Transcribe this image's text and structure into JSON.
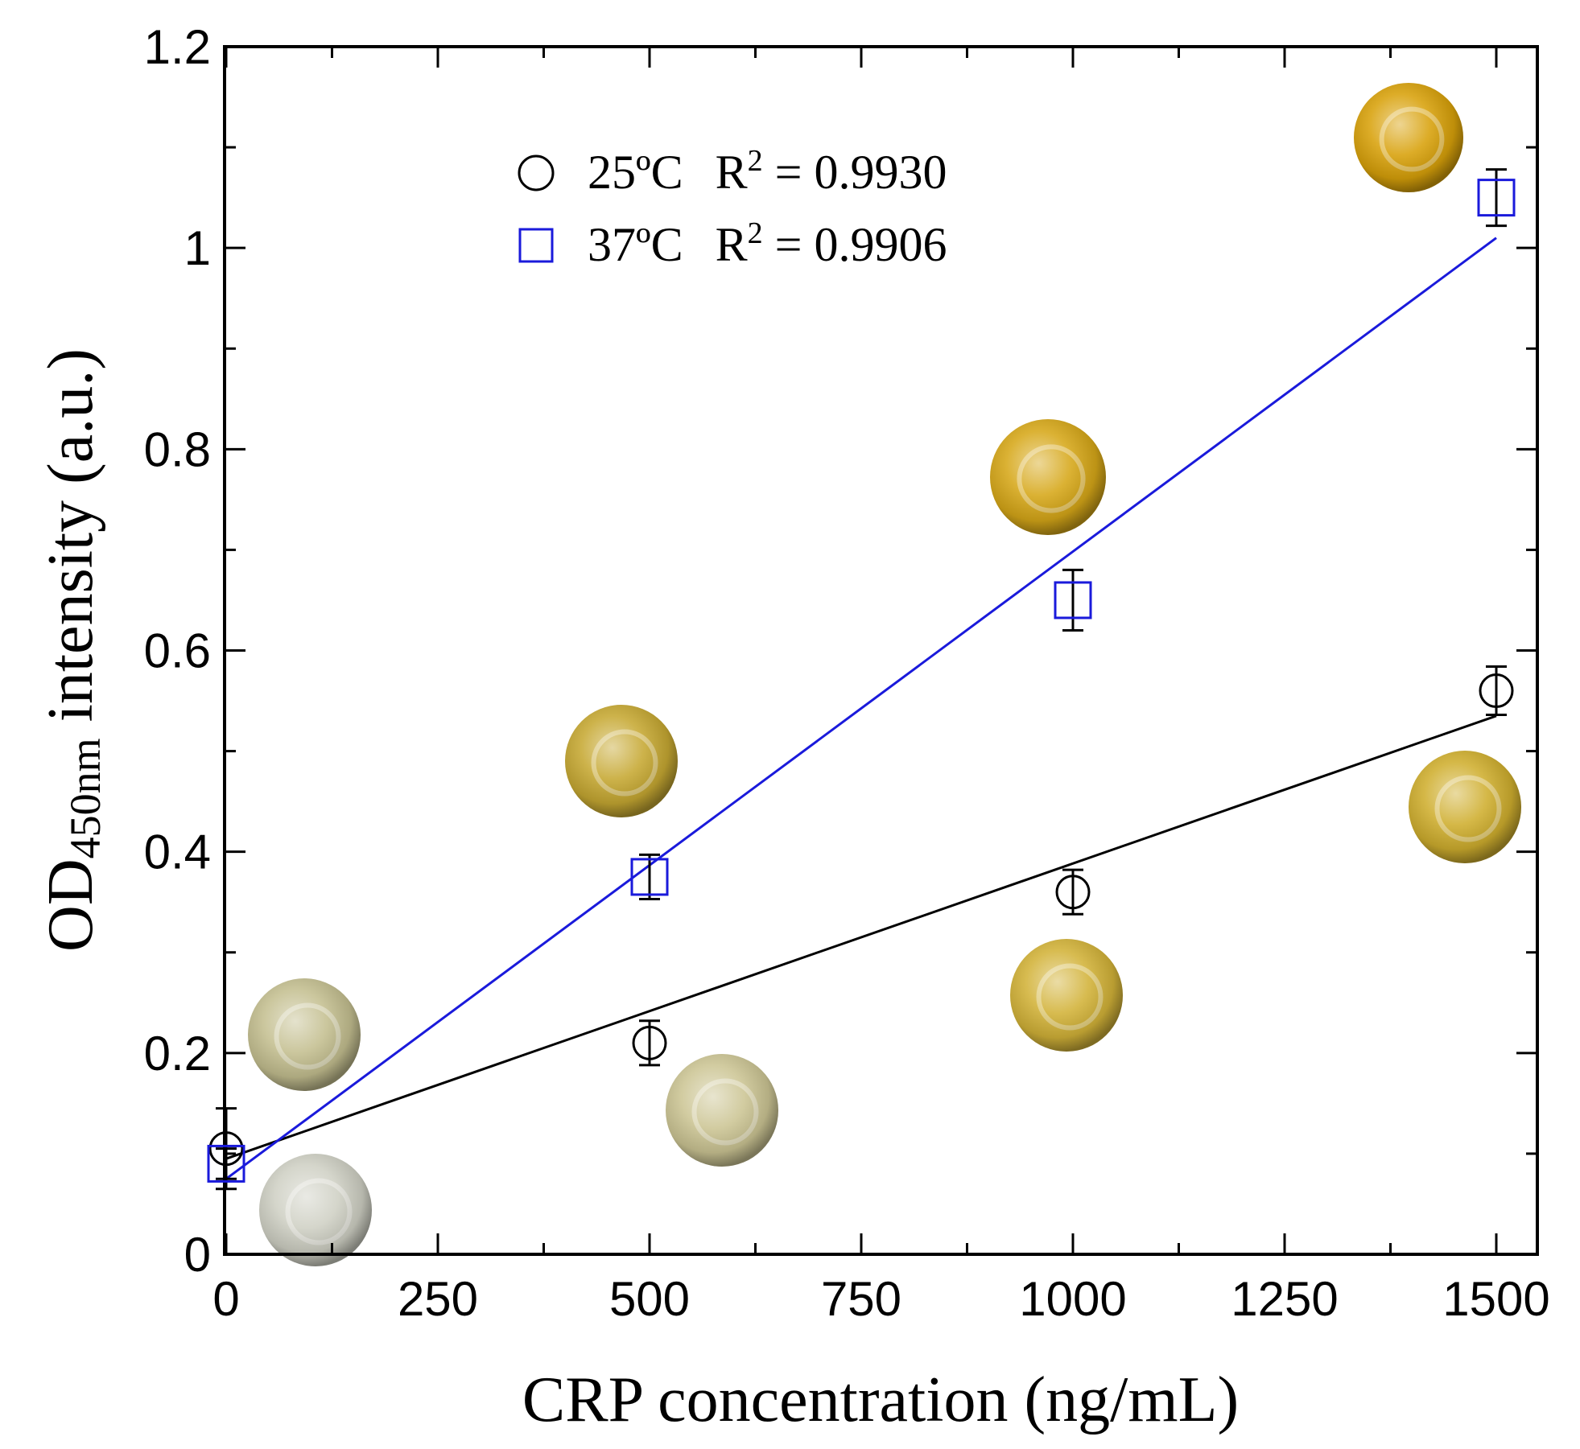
{
  "chart_data": {
    "type": "scatter",
    "title": "",
    "xlabel": "CRP concentration (ng/mL)",
    "ylabel": {
      "main": "OD",
      "subscript": "450nm",
      "rest": " intensity (a.u.)"
    },
    "xlim": [
      0,
      1550
    ],
    "ylim": [
      0,
      1.2
    ],
    "x_ticks": [
      0,
      250,
      500,
      750,
      1000,
      1250,
      1500
    ],
    "x_tick_labels": [
      "0",
      "250",
      "500",
      "750",
      "1000",
      "1250",
      "1500"
    ],
    "y_ticks": [
      0,
      0.2,
      0.4,
      0.6,
      0.8,
      1,
      1.2
    ],
    "y_tick_labels": [
      "0",
      "0.2",
      "0.4",
      "0.6",
      "0.8",
      "1",
      "1.2"
    ],
    "legend_position": "top-left",
    "series": [
      {
        "name": "25ºC",
        "r2_label": "R",
        "r2_value": " = 0.9930",
        "marker": "circle",
        "color": "#000000",
        "x": [
          0,
          500,
          1000,
          1500
        ],
        "y": [
          0.105,
          0.21,
          0.36,
          0.56
        ],
        "error": [
          0.04,
          0.022,
          0.022,
          0.024
        ],
        "fit": {
          "x": [
            0,
            1500
          ],
          "y": [
            0.095,
            0.535
          ]
        }
      },
      {
        "name": "37ºC",
        "r2_label": "R",
        "r2_value": " = 0.9906",
        "marker": "square",
        "color": "#1a1adb",
        "x": [
          0,
          500,
          1000,
          1500
        ],
        "y": [
          0.09,
          0.375,
          0.65,
          1.05
        ],
        "error": [
          0.015,
          0.022,
          0.03,
          0.028
        ],
        "fit": {
          "x": [
            0,
            1500
          ],
          "y": [
            0.075,
            1.01
          ]
        }
      }
    ],
    "well_images": [
      {
        "label": "25ºC 0",
        "color": "#cfd0c4"
      },
      {
        "label": "37ºC 0",
        "color": "#c4bf90"
      },
      {
        "label": "25ºC 500",
        "color": "#ccc594"
      },
      {
        "label": "37ºC 500",
        "color": "#c6a832"
      },
      {
        "label": "25ºC 1000",
        "color": "#d2b238"
      },
      {
        "label": "37ºC 1000",
        "color": "#d6a718"
      },
      {
        "label": "25ºC 1500",
        "color": "#cfae2e"
      },
      {
        "label": "37ºC 1500",
        "color": "#d8a10a"
      }
    ]
  }
}
